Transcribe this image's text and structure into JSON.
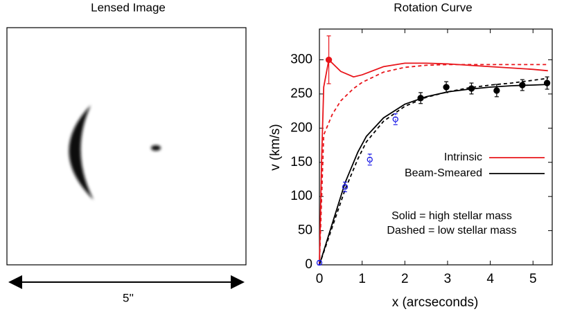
{
  "image_panel": {
    "title": "Lensed Image",
    "scale_label": "5''"
  },
  "chart_data": {
    "type": "line",
    "title": "Rotation Curve",
    "x_label": "x (arcseconds)",
    "y_label": "v (km/s)",
    "xlim": [
      0,
      5.45
    ],
    "ylim": [
      0,
      345
    ],
    "xticks": [
      0,
      1,
      2,
      3,
      4,
      5
    ],
    "yticks": [
      0,
      50,
      100,
      150,
      200,
      250,
      300
    ],
    "legend": "right",
    "series": [
      {
        "name": "Intrinsic",
        "color": "#e8141a",
        "dashed": false,
        "x": [
          0,
          0.05,
          0.1,
          0.22,
          0.5,
          0.8,
          1,
          1.5,
          2,
          2.5,
          3,
          4,
          5,
          5.35
        ],
        "values": [
          0,
          150,
          260,
          300,
          283,
          275,
          278,
          290,
          295,
          295,
          294,
          290,
          286,
          284
        ]
      },
      {
        "name": "Beam-Smeared",
        "color": "#000000",
        "dashed": false,
        "x": [
          0,
          0.3,
          0.6,
          0.9,
          1.1,
          1.5,
          2,
          2.5,
          3,
          3.5,
          4,
          4.5,
          5,
          5.35
        ],
        "values": [
          0,
          60,
          120,
          165,
          188,
          215,
          235,
          246,
          253,
          257,
          260,
          262,
          263,
          264
        ]
      },
      {
        "color": "#e8141a",
        "dashed": true,
        "x": [
          0,
          0.1,
          0.3,
          0.5,
          0.8,
          1,
          1.5,
          2,
          2.5,
          3,
          4,
          5,
          5.35
        ],
        "values": [
          0,
          190,
          220,
          240,
          258,
          267,
          282,
          289,
          292,
          293,
          293,
          293,
          293
        ]
      },
      {
        "color": "#000000",
        "dashed": true,
        "x": [
          0,
          0.3,
          0.6,
          0.9,
          1.1,
          1.5,
          2,
          2.5,
          3,
          3.5,
          4,
          4.5,
          5,
          5.35
        ],
        "values": [
          0,
          55,
          110,
          155,
          180,
          210,
          232,
          245,
          253,
          259,
          263,
          266,
          270,
          273
        ]
      }
    ],
    "errorbars": [
      {
        "color": "#000000",
        "marker": "filled",
        "x": [
          2.37,
          2.97,
          3.56,
          4.15,
          4.75,
          5.33
        ],
        "values": [
          244,
          260,
          258,
          255,
          263,
          266
        ],
        "errors": [
          8,
          8,
          8,
          9,
          8,
          9
        ]
      },
      {
        "color": "#1a1ae6",
        "marker": "open",
        "x": [
          0,
          0.6,
          1.18,
          1.78
        ],
        "values": [
          3,
          114,
          154,
          213
        ],
        "errors": [
          3,
          7,
          8,
          8
        ]
      },
      {
        "color": "#e8141a",
        "marker": "filled",
        "x": [
          0.22
        ],
        "values": [
          300
        ],
        "errors": [
          35
        ]
      }
    ],
    "annotations": [
      "Solid = high stellar mass",
      "Dashed = low stellar mass"
    ]
  }
}
